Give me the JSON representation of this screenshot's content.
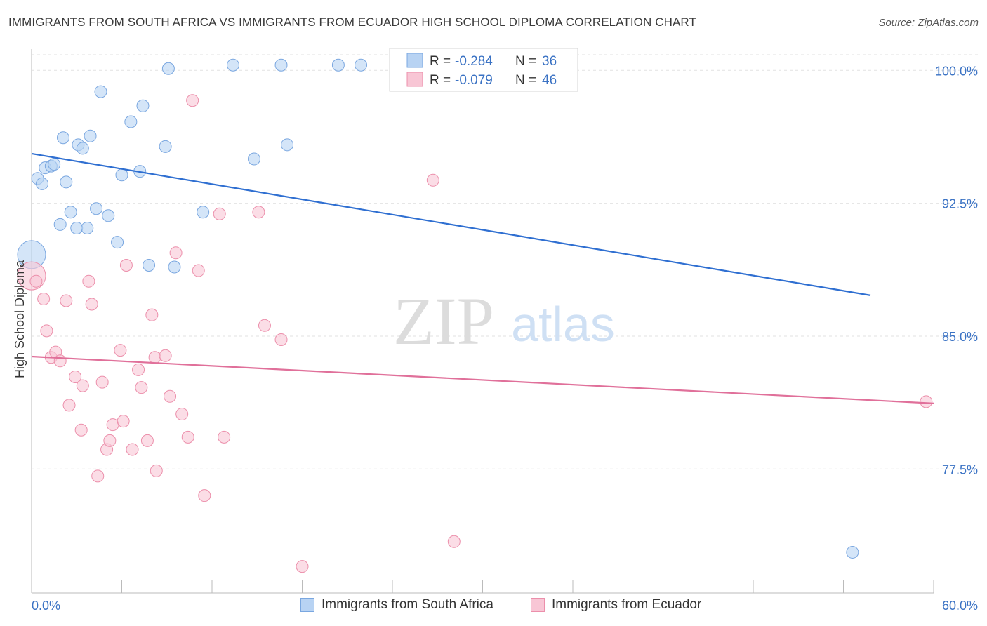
{
  "title": "IMMIGRANTS FROM SOUTH AFRICA VS IMMIGRANTS FROM ECUADOR HIGH SCHOOL DIPLOMA CORRELATION CHART",
  "source": "Source: ZipAtlas.com",
  "watermark": {
    "zip": "ZIP",
    "atlas": "atlas"
  },
  "colors": {
    "blue_fill": "#b8d3f3",
    "blue_stroke": "#7aa7e0",
    "blue_line": "#2f6fd1",
    "pink_fill": "#f8c6d5",
    "pink_stroke": "#ec8fab",
    "pink_line": "#e0709a",
    "value_text": "#3a72c4",
    "grid": "#dddddd"
  },
  "legend_box": [
    {
      "r_label": "R =",
      "r_value": "-0.284",
      "n_label": "N =",
      "n_value": "36"
    },
    {
      "r_label": "R =",
      "r_value": "-0.079",
      "n_label": "N =",
      "n_value": "46"
    }
  ],
  "chart_data": {
    "type": "scatter",
    "title": "IMMIGRANTS FROM SOUTH AFRICA VS IMMIGRANTS FROM ECUADOR HIGH SCHOOL DIPLOMA CORRELATION CHART",
    "xlabel": "",
    "ylabel": "High School Diploma",
    "xlim": [
      0,
      60
    ],
    "ylim": [
      70.5,
      101.2
    ],
    "x_tick_labels": [
      "0.0%",
      "60.0%"
    ],
    "y_ticks": [
      77.5,
      85.0,
      92.5,
      100.0
    ],
    "y_tick_labels": [
      "77.5%",
      "85.0%",
      "92.5%",
      "100.0%"
    ],
    "grid": true,
    "legend_placement": "bottom",
    "series": [
      {
        "name": "Immigrants from South Africa",
        "color": "#b8d3f3",
        "r": -0.284,
        "n": 36,
        "trendline": {
          "x": [
            0,
            55.8
          ],
          "y": [
            95.3,
            87.3
          ]
        },
        "points": [
          {
            "x": 0.0,
            "y": 89.6,
            "big": true
          },
          {
            "x": 0.4,
            "y": 93.9
          },
          {
            "x": 0.7,
            "y": 93.6
          },
          {
            "x": 0.9,
            "y": 94.5
          },
          {
            "x": 1.3,
            "y": 94.6
          },
          {
            "x": 1.5,
            "y": 94.7
          },
          {
            "x": 1.9,
            "y": 91.3
          },
          {
            "x": 2.1,
            "y": 96.2
          },
          {
            "x": 2.3,
            "y": 93.7
          },
          {
            "x": 2.6,
            "y": 92.0
          },
          {
            "x": 3.0,
            "y": 91.1
          },
          {
            "x": 3.1,
            "y": 95.8
          },
          {
            "x": 3.4,
            "y": 95.6
          },
          {
            "x": 3.7,
            "y": 91.1
          },
          {
            "x": 3.9,
            "y": 96.3
          },
          {
            "x": 4.3,
            "y": 92.2
          },
          {
            "x": 4.6,
            "y": 98.8
          },
          {
            "x": 5.1,
            "y": 91.8
          },
          {
            "x": 5.7,
            "y": 90.3
          },
          {
            "x": 6.0,
            "y": 94.1
          },
          {
            "x": 6.6,
            "y": 97.1
          },
          {
            "x": 7.2,
            "y": 94.3
          },
          {
            "x": 7.4,
            "y": 98.0
          },
          {
            "x": 7.8,
            "y": 89.0
          },
          {
            "x": 8.9,
            "y": 95.7
          },
          {
            "x": 9.1,
            "y": 100.1
          },
          {
            "x": 9.5,
            "y": 88.9
          },
          {
            "x": 11.4,
            "y": 92.0
          },
          {
            "x": 13.4,
            "y": 100.3
          },
          {
            "x": 14.8,
            "y": 95.0
          },
          {
            "x": 16.6,
            "y": 100.3
          },
          {
            "x": 17.0,
            "y": 95.8
          },
          {
            "x": 20.4,
            "y": 100.3
          },
          {
            "x": 21.9,
            "y": 100.3
          },
          {
            "x": 33.5,
            "y": 100.3
          },
          {
            "x": 54.6,
            "y": 72.8
          }
        ]
      },
      {
        "name": "Immigrants from Ecuador",
        "color": "#f8c6d5",
        "r": -0.079,
        "n": 46,
        "trendline": {
          "x": [
            0,
            60
          ],
          "y": [
            83.85,
            81.2
          ]
        },
        "points": [
          {
            "x": 0.0,
            "y": 88.4,
            "big": true
          },
          {
            "x": 0.3,
            "y": 88.1
          },
          {
            "x": 0.8,
            "y": 87.1
          },
          {
            "x": 1.0,
            "y": 85.3
          },
          {
            "x": 1.3,
            "y": 83.8
          },
          {
            "x": 1.6,
            "y": 84.1
          },
          {
            "x": 1.9,
            "y": 83.6
          },
          {
            "x": 2.3,
            "y": 87.0
          },
          {
            "x": 2.5,
            "y": 81.1
          },
          {
            "x": 2.9,
            "y": 82.7
          },
          {
            "x": 3.3,
            "y": 79.7
          },
          {
            "x": 3.4,
            "y": 82.2
          },
          {
            "x": 3.8,
            "y": 88.1
          },
          {
            "x": 4.0,
            "y": 86.8
          },
          {
            "x": 4.4,
            "y": 77.1
          },
          {
            "x": 4.7,
            "y": 82.4
          },
          {
            "x": 5.0,
            "y": 78.6
          },
          {
            "x": 5.2,
            "y": 79.1
          },
          {
            "x": 5.4,
            "y": 80.0
          },
          {
            "x": 5.9,
            "y": 84.2
          },
          {
            "x": 6.1,
            "y": 80.2
          },
          {
            "x": 6.3,
            "y": 89.0
          },
          {
            "x": 6.7,
            "y": 78.6
          },
          {
            "x": 7.1,
            "y": 83.1
          },
          {
            "x": 7.3,
            "y": 82.1
          },
          {
            "x": 7.7,
            "y": 79.1
          },
          {
            "x": 8.0,
            "y": 86.2
          },
          {
            "x": 8.2,
            "y": 83.8
          },
          {
            "x": 8.3,
            "y": 77.4
          },
          {
            "x": 8.9,
            "y": 83.9
          },
          {
            "x": 9.2,
            "y": 81.6
          },
          {
            "x": 9.6,
            "y": 89.7
          },
          {
            "x": 10.0,
            "y": 80.6
          },
          {
            "x": 10.4,
            "y": 79.3
          },
          {
            "x": 10.7,
            "y": 98.3
          },
          {
            "x": 11.1,
            "y": 88.7
          },
          {
            "x": 11.5,
            "y": 76.0
          },
          {
            "x": 12.5,
            "y": 91.9
          },
          {
            "x": 12.8,
            "y": 79.3
          },
          {
            "x": 15.1,
            "y": 92.0
          },
          {
            "x": 15.5,
            "y": 85.6
          },
          {
            "x": 16.6,
            "y": 84.8
          },
          {
            "x": 18.0,
            "y": 72.0
          },
          {
            "x": 26.7,
            "y": 93.8
          },
          {
            "x": 28.1,
            "y": 73.4
          },
          {
            "x": 59.5,
            "y": 81.3
          }
        ]
      }
    ]
  }
}
